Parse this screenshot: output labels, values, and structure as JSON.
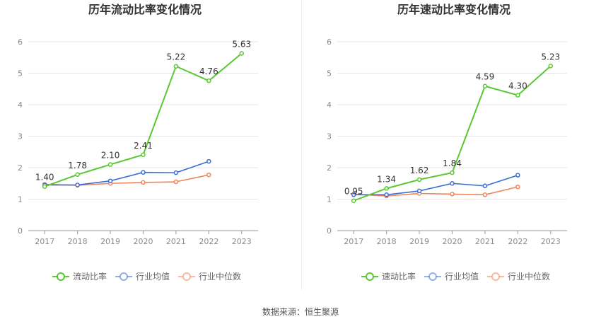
{
  "footer": {
    "source": "数据来源：恒生聚源"
  },
  "chart_data": [
    {
      "type": "line",
      "title": "历年流动比率变化情况",
      "xlabel": "",
      "ylabel": "",
      "categories": [
        "2017",
        "2018",
        "2019",
        "2020",
        "2021",
        "2022",
        "2023"
      ],
      "ylim": [
        0,
        6
      ],
      "yticks": [
        0,
        1,
        2,
        3,
        4,
        5,
        6
      ],
      "grid": true,
      "legend_position": "bottom",
      "series": [
        {
          "name": "流动比率",
          "color": "#5ac832",
          "values": [
            1.4,
            1.78,
            2.1,
            2.41,
            5.22,
            4.76,
            5.63
          ],
          "labels": [
            "1.40",
            "1.78",
            "2.10",
            "2.41",
            "5.22",
            "4.76",
            "5.63"
          ]
        },
        {
          "name": "行业均值",
          "color": "#3b6fd6",
          "values": [
            1.45,
            1.45,
            1.58,
            1.85,
            1.84,
            2.2,
            null
          ]
        },
        {
          "name": "行业中位数",
          "color": "#f0845a",
          "values": [
            1.47,
            1.44,
            1.5,
            1.53,
            1.55,
            1.77,
            null
          ]
        }
      ]
    },
    {
      "type": "line",
      "title": "历年速动比率变化情况",
      "xlabel": "",
      "ylabel": "",
      "categories": [
        "2017",
        "2018",
        "2019",
        "2020",
        "2021",
        "2022",
        "2023"
      ],
      "ylim": [
        0,
        6
      ],
      "yticks": [
        0,
        1,
        2,
        3,
        4,
        5,
        6
      ],
      "grid": true,
      "legend_position": "bottom",
      "series": [
        {
          "name": "速动比率",
          "color": "#5ac832",
          "values": [
            0.95,
            1.34,
            1.62,
            1.84,
            4.59,
            4.3,
            5.23
          ],
          "labels": [
            "0.95",
            "1.34",
            "1.62",
            "1.84",
            "4.59",
            "4.30",
            "5.23"
          ]
        },
        {
          "name": "行业均值",
          "color": "#3b6fd6",
          "values": [
            1.14,
            1.14,
            1.26,
            1.5,
            1.42,
            1.76,
            null
          ]
        },
        {
          "name": "行业中位数",
          "color": "#f0845a",
          "values": [
            1.16,
            1.1,
            1.18,
            1.16,
            1.14,
            1.39,
            null
          ]
        }
      ]
    }
  ]
}
